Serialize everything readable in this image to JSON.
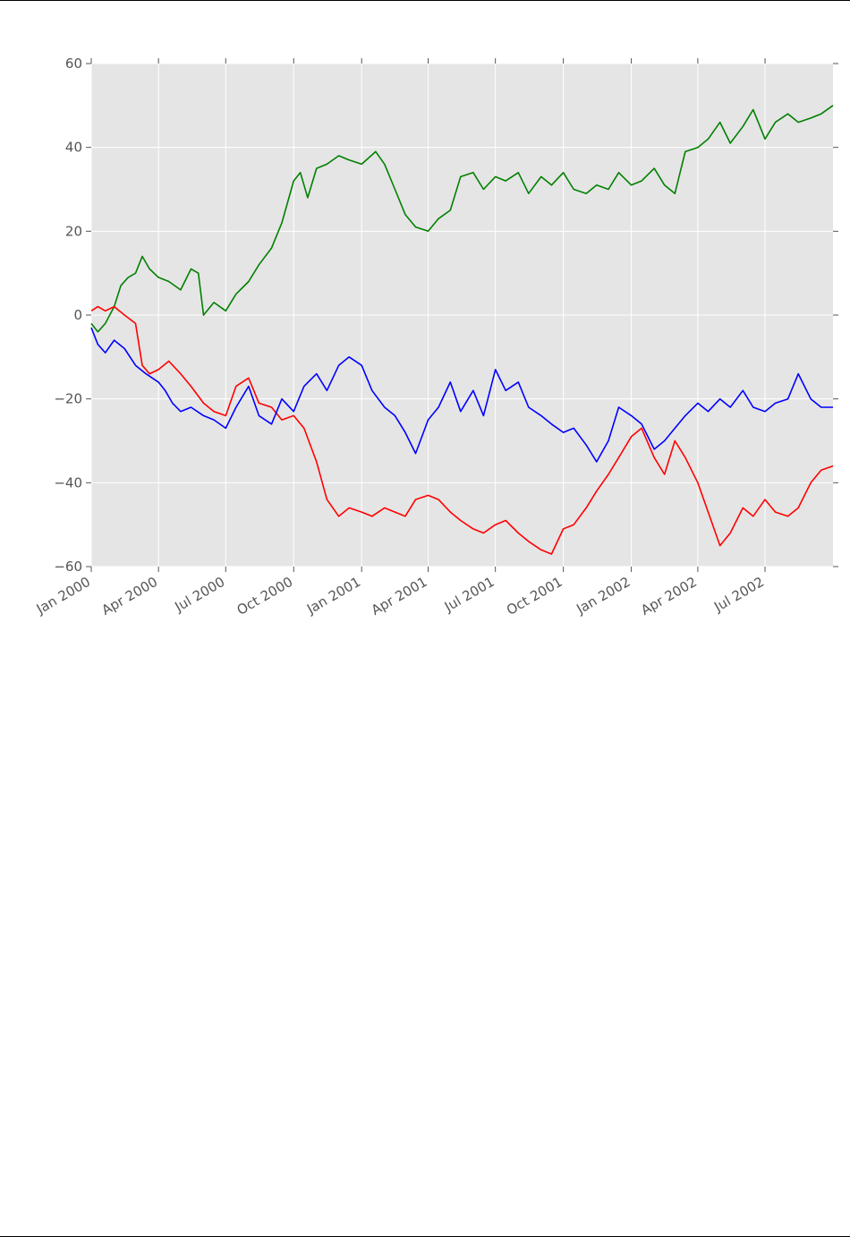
{
  "chart_data": {
    "type": "line",
    "title": "",
    "xlabel": "",
    "ylabel": "",
    "x_start": "2000-01-01",
    "x_end": "2002-10-01",
    "ylim": [
      -60,
      60
    ],
    "yticks": [
      -60,
      -40,
      -20,
      0,
      20,
      40,
      60
    ],
    "xticks": [
      {
        "date": "2000-01-01",
        "label": "Jan 2000"
      },
      {
        "date": "2000-04-01",
        "label": "Apr 2000"
      },
      {
        "date": "2000-07-01",
        "label": "Jul 2000"
      },
      {
        "date": "2000-10-01",
        "label": "Oct 2000"
      },
      {
        "date": "2001-01-01",
        "label": "Jan 2001"
      },
      {
        "date": "2001-04-01",
        "label": "Apr 2001"
      },
      {
        "date": "2001-07-01",
        "label": "Jul 2001"
      },
      {
        "date": "2001-10-01",
        "label": "Oct 2001"
      },
      {
        "date": "2002-01-01",
        "label": "Jan 2002"
      },
      {
        "date": "2002-04-01",
        "label": "Apr 2002"
      },
      {
        "date": "2002-07-01",
        "label": "Jul 2002"
      }
    ],
    "grid": true,
    "background": "#e5e5e5",
    "series": [
      {
        "color": "#008000",
        "points": [
          [
            "2000-01-01",
            -2
          ],
          [
            "2000-01-10",
            -4
          ],
          [
            "2000-01-20",
            -2
          ],
          [
            "2000-02-01",
            2
          ],
          [
            "2000-02-10",
            7
          ],
          [
            "2000-02-20",
            9
          ],
          [
            "2000-03-01",
            10
          ],
          [
            "2000-03-10",
            14
          ],
          [
            "2000-03-20",
            11
          ],
          [
            "2000-04-01",
            9
          ],
          [
            "2000-04-15",
            8
          ],
          [
            "2000-05-01",
            6
          ],
          [
            "2000-05-15",
            11
          ],
          [
            "2000-05-25",
            10
          ],
          [
            "2000-06-01",
            0
          ],
          [
            "2000-06-15",
            3
          ],
          [
            "2000-07-01",
            1
          ],
          [
            "2000-07-15",
            5
          ],
          [
            "2000-08-01",
            8
          ],
          [
            "2000-08-15",
            12
          ],
          [
            "2000-09-01",
            16
          ],
          [
            "2000-09-15",
            22
          ],
          [
            "2000-10-01",
            32
          ],
          [
            "2000-10-10",
            34
          ],
          [
            "2000-10-20",
            28
          ],
          [
            "2000-11-01",
            35
          ],
          [
            "2000-11-15",
            36
          ],
          [
            "2000-12-01",
            38
          ],
          [
            "2000-12-15",
            37
          ],
          [
            "2001-01-01",
            36
          ],
          [
            "2001-01-20",
            39
          ],
          [
            "2001-02-01",
            36
          ],
          [
            "2001-02-15",
            30
          ],
          [
            "2001-03-01",
            24
          ],
          [
            "2001-03-15",
            21
          ],
          [
            "2001-04-01",
            20
          ],
          [
            "2001-04-15",
            23
          ],
          [
            "2001-05-01",
            25
          ],
          [
            "2001-05-15",
            33
          ],
          [
            "2001-06-01",
            34
          ],
          [
            "2001-06-15",
            30
          ],
          [
            "2001-07-01",
            33
          ],
          [
            "2001-07-15",
            32
          ],
          [
            "2001-08-01",
            34
          ],
          [
            "2001-08-15",
            29
          ],
          [
            "2001-09-01",
            33
          ],
          [
            "2001-09-15",
            31
          ],
          [
            "2001-10-01",
            34
          ],
          [
            "2001-10-15",
            30
          ],
          [
            "2001-11-01",
            29
          ],
          [
            "2001-11-15",
            31
          ],
          [
            "2001-12-01",
            30
          ],
          [
            "2001-12-15",
            34
          ],
          [
            "2002-01-01",
            31
          ],
          [
            "2002-01-15",
            32
          ],
          [
            "2002-02-01",
            35
          ],
          [
            "2002-02-15",
            31
          ],
          [
            "2002-03-01",
            29
          ],
          [
            "2002-03-15",
            39
          ],
          [
            "2002-04-01",
            40
          ],
          [
            "2002-04-15",
            42
          ],
          [
            "2002-05-01",
            46
          ],
          [
            "2002-05-15",
            41
          ],
          [
            "2002-06-01",
            45
          ],
          [
            "2002-06-15",
            49
          ],
          [
            "2002-07-01",
            42
          ],
          [
            "2002-07-15",
            46
          ],
          [
            "2002-08-01",
            48
          ],
          [
            "2002-08-15",
            46
          ],
          [
            "2002-09-01",
            47
          ],
          [
            "2002-09-15",
            48
          ],
          [
            "2002-10-01",
            50
          ]
        ]
      },
      {
        "color": "#ff0000",
        "points": [
          [
            "2000-01-01",
            1
          ],
          [
            "2000-01-10",
            2
          ],
          [
            "2000-01-20",
            1
          ],
          [
            "2000-02-01",
            2
          ],
          [
            "2000-02-15",
            0
          ],
          [
            "2000-03-01",
            -2
          ],
          [
            "2000-03-10",
            -12
          ],
          [
            "2000-03-20",
            -14
          ],
          [
            "2000-04-01",
            -13
          ],
          [
            "2000-04-15",
            -11
          ],
          [
            "2000-05-01",
            -14
          ],
          [
            "2000-05-15",
            -17
          ],
          [
            "2000-06-01",
            -21
          ],
          [
            "2000-06-15",
            -23
          ],
          [
            "2000-07-01",
            -24
          ],
          [
            "2000-07-15",
            -17
          ],
          [
            "2000-08-01",
            -15
          ],
          [
            "2000-08-15",
            -21
          ],
          [
            "2000-09-01",
            -22
          ],
          [
            "2000-09-15",
            -25
          ],
          [
            "2000-10-01",
            -24
          ],
          [
            "2000-10-15",
            -27
          ],
          [
            "2000-11-01",
            -35
          ],
          [
            "2000-11-15",
            -44
          ],
          [
            "2000-12-01",
            -48
          ],
          [
            "2000-12-15",
            -46
          ],
          [
            "2001-01-01",
            -47
          ],
          [
            "2001-01-15",
            -48
          ],
          [
            "2001-02-01",
            -46
          ],
          [
            "2001-02-15",
            -47
          ],
          [
            "2001-03-01",
            -48
          ],
          [
            "2001-03-15",
            -44
          ],
          [
            "2001-04-01",
            -43
          ],
          [
            "2001-04-15",
            -44
          ],
          [
            "2001-05-01",
            -47
          ],
          [
            "2001-05-15",
            -49
          ],
          [
            "2001-06-01",
            -51
          ],
          [
            "2001-06-15",
            -52
          ],
          [
            "2001-07-01",
            -50
          ],
          [
            "2001-07-15",
            -49
          ],
          [
            "2001-08-01",
            -52
          ],
          [
            "2001-08-15",
            -54
          ],
          [
            "2001-09-01",
            -56
          ],
          [
            "2001-09-15",
            -57
          ],
          [
            "2001-10-01",
            -51
          ],
          [
            "2001-10-15",
            -50
          ],
          [
            "2001-11-01",
            -46
          ],
          [
            "2001-11-15",
            -42
          ],
          [
            "2001-12-01",
            -38
          ],
          [
            "2001-12-15",
            -34
          ],
          [
            "2002-01-01",
            -29
          ],
          [
            "2002-01-15",
            -27
          ],
          [
            "2002-02-01",
            -34
          ],
          [
            "2002-02-15",
            -38
          ],
          [
            "2002-03-01",
            -30
          ],
          [
            "2002-03-15",
            -34
          ],
          [
            "2002-04-01",
            -40
          ],
          [
            "2002-04-15",
            -47
          ],
          [
            "2002-05-01",
            -55
          ],
          [
            "2002-05-15",
            -52
          ],
          [
            "2002-06-01",
            -46
          ],
          [
            "2002-06-15",
            -48
          ],
          [
            "2002-07-01",
            -44
          ],
          [
            "2002-07-15",
            -47
          ],
          [
            "2002-08-01",
            -48
          ],
          [
            "2002-08-15",
            -46
          ],
          [
            "2002-09-01",
            -40
          ],
          [
            "2002-09-15",
            -37
          ],
          [
            "2002-10-01",
            -36
          ]
        ]
      },
      {
        "color": "#0000ff",
        "points": [
          [
            "2000-01-01",
            -3
          ],
          [
            "2000-01-10",
            -7
          ],
          [
            "2000-01-20",
            -9
          ],
          [
            "2000-02-01",
            -6
          ],
          [
            "2000-02-15",
            -8
          ],
          [
            "2000-03-01",
            -12
          ],
          [
            "2000-03-15",
            -14
          ],
          [
            "2000-04-01",
            -16
          ],
          [
            "2000-04-10",
            -18
          ],
          [
            "2000-04-20",
            -21
          ],
          [
            "2000-05-01",
            -23
          ],
          [
            "2000-05-15",
            -22
          ],
          [
            "2000-06-01",
            -24
          ],
          [
            "2000-06-15",
            -25
          ],
          [
            "2000-07-01",
            -27
          ],
          [
            "2000-07-15",
            -22
          ],
          [
            "2000-08-01",
            -17
          ],
          [
            "2000-08-15",
            -24
          ],
          [
            "2000-09-01",
            -26
          ],
          [
            "2000-09-15",
            -20
          ],
          [
            "2000-10-01",
            -23
          ],
          [
            "2000-10-15",
            -17
          ],
          [
            "2000-11-01",
            -14
          ],
          [
            "2000-11-15",
            -18
          ],
          [
            "2000-12-01",
            -12
          ],
          [
            "2000-12-15",
            -10
          ],
          [
            "2001-01-01",
            -12
          ],
          [
            "2001-01-15",
            -18
          ],
          [
            "2001-02-01",
            -22
          ],
          [
            "2001-02-15",
            -24
          ],
          [
            "2001-03-01",
            -28
          ],
          [
            "2001-03-15",
            -33
          ],
          [
            "2001-04-01",
            -25
          ],
          [
            "2001-04-15",
            -22
          ],
          [
            "2001-05-01",
            -16
          ],
          [
            "2001-05-15",
            -23
          ],
          [
            "2001-06-01",
            -18
          ],
          [
            "2001-06-15",
            -24
          ],
          [
            "2001-07-01",
            -13
          ],
          [
            "2001-07-15",
            -18
          ],
          [
            "2001-08-01",
            -16
          ],
          [
            "2001-08-15",
            -22
          ],
          [
            "2001-09-01",
            -24
          ],
          [
            "2001-09-15",
            -26
          ],
          [
            "2001-10-01",
            -28
          ],
          [
            "2001-10-15",
            -27
          ],
          [
            "2001-11-01",
            -31
          ],
          [
            "2001-11-15",
            -35
          ],
          [
            "2001-12-01",
            -30
          ],
          [
            "2001-12-15",
            -22
          ],
          [
            "2002-01-01",
            -24
          ],
          [
            "2002-01-15",
            -26
          ],
          [
            "2002-02-01",
            -32
          ],
          [
            "2002-02-15",
            -30
          ],
          [
            "2002-03-01",
            -27
          ],
          [
            "2002-03-15",
            -24
          ],
          [
            "2002-04-01",
            -21
          ],
          [
            "2002-04-15",
            -23
          ],
          [
            "2002-05-01",
            -20
          ],
          [
            "2002-05-15",
            -22
          ],
          [
            "2002-06-01",
            -18
          ],
          [
            "2002-06-15",
            -22
          ],
          [
            "2002-07-01",
            -23
          ],
          [
            "2002-07-15",
            -21
          ],
          [
            "2002-08-01",
            -20
          ],
          [
            "2002-08-15",
            -14
          ],
          [
            "2002-09-01",
            -20
          ],
          [
            "2002-09-15",
            -22
          ],
          [
            "2002-10-01",
            -22
          ]
        ]
      }
    ]
  }
}
